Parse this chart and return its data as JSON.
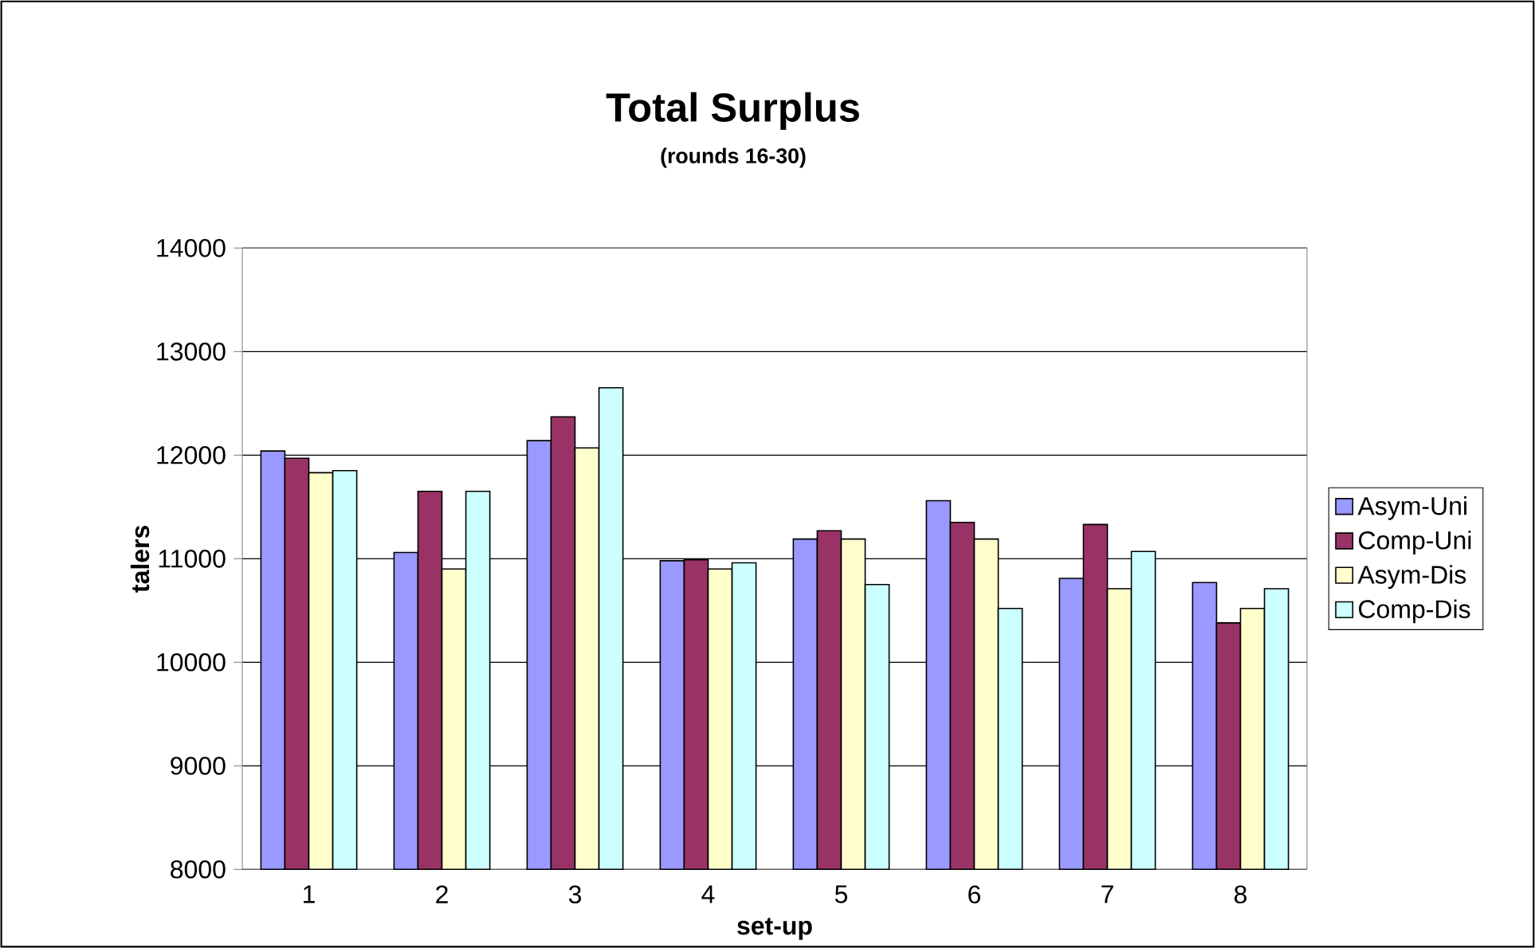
{
  "chart_data": {
    "type": "bar",
    "title": "Total Surplus",
    "subtitle": "(rounds 16-30)",
    "xlabel": "set-up",
    "ylabel": "talers",
    "categories": [
      "1",
      "2",
      "3",
      "4",
      "5",
      "6",
      "7",
      "8"
    ],
    "series": [
      {
        "name": "Asym-Uni",
        "color": "#9999ff",
        "values": [
          12040,
          11060,
          12140,
          10980,
          11190,
          11560,
          10810,
          10770
        ]
      },
      {
        "name": "Comp-Uni",
        "color": "#993366",
        "values": [
          11970,
          11650,
          12370,
          10990,
          11270,
          11350,
          11330,
          10380
        ]
      },
      {
        "name": "Asym-Dis",
        "color": "#ffffcc",
        "values": [
          11830,
          10900,
          12070,
          10900,
          11190,
          11190,
          10710,
          10520
        ]
      },
      {
        "name": "Comp-Dis",
        "color": "#ccffff",
        "values": [
          11850,
          11650,
          12650,
          10960,
          10750,
          10520,
          11070,
          10710
        ]
      }
    ],
    "ylim": [
      8000,
      14000
    ],
    "yticks": [
      8000,
      9000,
      10000,
      11000,
      12000,
      13000,
      14000
    ],
    "grid": "y",
    "legend": "right"
  }
}
